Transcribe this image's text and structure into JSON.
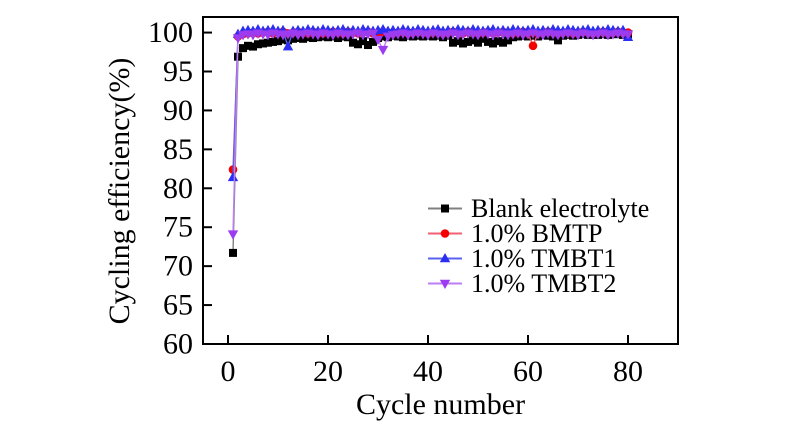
{
  "figure": {
    "background_color": "#ffffff",
    "text_color": "#000000",
    "axis_color": "#000000"
  },
  "chart_data": {
    "type": "line",
    "title": "",
    "xlabel": "Cycle number",
    "ylabel": "Cycling efficiency(%)",
    "xlim": [
      -5,
      90
    ],
    "ylim": [
      60,
      102
    ],
    "x_ticks": [
      0,
      20,
      40,
      60,
      80
    ],
    "y_ticks": [
      60,
      65,
      70,
      75,
      80,
      85,
      90,
      95,
      100
    ],
    "grid": false,
    "legend_position": "inside-right-middle",
    "x": [
      1,
      2,
      3,
      4,
      5,
      6,
      7,
      8,
      9,
      10,
      11,
      12,
      13,
      14,
      15,
      16,
      17,
      18,
      19,
      20,
      21,
      22,
      23,
      24,
      25,
      26,
      27,
      28,
      29,
      30,
      31,
      32,
      33,
      34,
      35,
      36,
      37,
      38,
      39,
      40,
      41,
      42,
      43,
      44,
      45,
      46,
      47,
      48,
      49,
      50,
      51,
      52,
      53,
      54,
      55,
      56,
      57,
      58,
      59,
      60,
      61,
      62,
      63,
      64,
      65,
      66,
      67,
      68,
      69,
      70,
      71,
      72,
      73,
      74,
      75,
      76,
      77,
      78,
      79,
      80
    ],
    "series": [
      {
        "name": "Blank electrolyte",
        "marker": "square",
        "marker_color": "#000000",
        "line_color": "#808080",
        "values": [
          71.7,
          96.9,
          98.0,
          98.3,
          98.2,
          98.5,
          98.6,
          98.7,
          98.8,
          98.9,
          99.1,
          99.0,
          99.2,
          99.3,
          99.2,
          99.4,
          99.3,
          99.4,
          99.5,
          99.4,
          99.5,
          99.3,
          99.5,
          99.4,
          98.7,
          98.5,
          98.9,
          98.4,
          98.8,
          99.3,
          99.5,
          99.4,
          99.6,
          99.5,
          99.4,
          99.6,
          99.5,
          99.6,
          99.5,
          99.6,
          99.5,
          99.6,
          99.4,
          99.6,
          98.7,
          98.9,
          98.6,
          98.8,
          99.0,
          98.7,
          99.2,
          98.8,
          98.6,
          98.9,
          98.7,
          99.0,
          99.4,
          99.5,
          99.6,
          99.5,
          99.6,
          99.5,
          99.7,
          99.6,
          99.5,
          99.0,
          99.6,
          99.7,
          99.6,
          99.7,
          99.8,
          99.7,
          99.8,
          99.7,
          99.8,
          99.7,
          99.8,
          99.8,
          99.7,
          99.8
        ]
      },
      {
        "name": "1.0% BMTP",
        "marker": "circle",
        "marker_color": "#f50000",
        "line_color": "#f06070",
        "values": [
          82.4,
          99.5,
          99.8,
          99.9,
          100.0,
          99.9,
          100.0,
          100.1,
          99.9,
          100.0,
          100.1,
          99.9,
          100.0,
          100.1,
          100.0,
          99.9,
          100.1,
          100.0,
          99.9,
          100.0,
          100.1,
          100.0,
          99.9,
          100.1,
          100.0,
          99.9,
          100.0,
          100.1,
          99.9,
          100.0,
          100.1,
          100.0,
          99.9,
          100.0,
          100.1,
          99.9,
          100.0,
          100.1,
          100.0,
          99.9,
          100.0,
          100.1,
          99.9,
          100.0,
          100.1,
          100.0,
          99.9,
          100.1,
          100.0,
          99.9,
          100.0,
          100.1,
          99.9,
          100.0,
          100.1,
          100.0,
          99.9,
          100.0,
          100.1,
          99.9,
          98.3,
          99.9,
          100.0,
          100.1,
          100.0,
          99.9,
          100.0,
          100.1,
          99.9,
          100.0,
          100.1,
          100.0,
          99.9,
          100.0,
          100.1,
          99.9,
          100.0,
          100.1,
          100.0,
          100.0
        ]
      },
      {
        "name": "1.0% TMBT1",
        "marker": "triangle-up",
        "marker_color": "#2a2df2",
        "line_color": "#5a60f0",
        "values": [
          81.4,
          99.8,
          100.2,
          100.3,
          100.2,
          100.4,
          100.2,
          100.3,
          100.4,
          100.2,
          100.3,
          98.2,
          100.2,
          100.3,
          100.2,
          100.4,
          100.3,
          100.2,
          100.4,
          100.3,
          100.2,
          100.3,
          100.4,
          100.2,
          100.3,
          100.2,
          100.4,
          100.3,
          100.2,
          100.3,
          100.4,
          100.2,
          100.3,
          100.2,
          100.4,
          100.3,
          100.2,
          100.4,
          100.3,
          100.2,
          100.3,
          100.4,
          100.2,
          100.3,
          100.2,
          100.4,
          100.3,
          100.2,
          100.4,
          100.3,
          100.2,
          100.3,
          100.4,
          100.2,
          100.3,
          100.2,
          100.4,
          100.3,
          100.2,
          100.3,
          100.4,
          100.2,
          100.3,
          100.2,
          100.4,
          100.3,
          100.2,
          100.4,
          100.3,
          100.2,
          100.3,
          100.4,
          100.2,
          100.3,
          100.2,
          100.4,
          100.3,
          100.2,
          100.3,
          99.4
        ]
      },
      {
        "name": "1.0% TMBT2",
        "marker": "triangle-down",
        "marker_color": "#9c3bf0",
        "line_color": "#bd7df5",
        "values": [
          74.1,
          99.3,
          99.7,
          99.8,
          99.7,
          99.9,
          99.8,
          99.7,
          99.9,
          99.8,
          99.7,
          99.8,
          99.9,
          99.7,
          99.8,
          99.9,
          99.8,
          99.7,
          99.9,
          99.8,
          99.7,
          99.9,
          99.8,
          99.7,
          99.8,
          99.9,
          99.7,
          99.8,
          99.9,
          99.1,
          97.8,
          99.5,
          99.7,
          99.8,
          99.9,
          99.7,
          99.8,
          99.9,
          99.8,
          99.7,
          99.9,
          99.8,
          99.7,
          99.8,
          99.9,
          99.7,
          99.8,
          99.9,
          99.8,
          99.7,
          99.9,
          99.8,
          99.7,
          99.9,
          99.8,
          99.7,
          99.8,
          99.9,
          99.7,
          99.8,
          99.9,
          99.8,
          99.7,
          99.9,
          99.8,
          99.7,
          99.8,
          99.9,
          99.8,
          99.7,
          99.9,
          99.8,
          99.7,
          99.8,
          99.9,
          99.7,
          99.8,
          99.9,
          99.8,
          99.8
        ]
      }
    ]
  }
}
